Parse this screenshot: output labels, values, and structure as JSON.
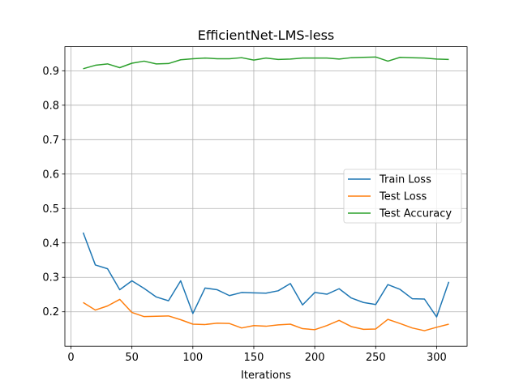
{
  "chart_data": {
    "type": "line",
    "title": "EfficientNet-LMS-less",
    "xlabel": "Iterations",
    "ylabel": "",
    "xlim": [
      -5,
      325
    ],
    "ylim": [
      0.1,
      0.97
    ],
    "xticks": [
      0,
      50,
      100,
      150,
      200,
      250,
      300
    ],
    "yticks": [
      0.2,
      0.3,
      0.4,
      0.5,
      0.6,
      0.7,
      0.8,
      0.9
    ],
    "grid": true,
    "legend_position": "center-right",
    "x": [
      10,
      20,
      30,
      40,
      50,
      60,
      70,
      80,
      90,
      100,
      110,
      120,
      130,
      140,
      150,
      160,
      170,
      180,
      190,
      200,
      210,
      220,
      230,
      240,
      250,
      260,
      270,
      280,
      290,
      300,
      310
    ],
    "series": [
      {
        "name": "Train Loss",
        "color": "#1f77b4",
        "values": [
          0.43,
          0.336,
          0.325,
          0.264,
          0.29,
          0.268,
          0.243,
          0.232,
          0.29,
          0.195,
          0.269,
          0.264,
          0.247,
          0.256,
          0.255,
          0.254,
          0.261,
          0.282,
          0.22,
          0.256,
          0.251,
          0.267,
          0.24,
          0.227,
          0.221,
          0.279,
          0.265,
          0.238,
          0.237,
          0.185,
          0.287
        ]
      },
      {
        "name": "Test Loss",
        "color": "#ff7f0e",
        "values": [
          0.227,
          0.205,
          0.217,
          0.236,
          0.198,
          0.186,
          0.187,
          0.188,
          0.177,
          0.164,
          0.163,
          0.167,
          0.166,
          0.153,
          0.16,
          0.158,
          0.162,
          0.164,
          0.151,
          0.148,
          0.16,
          0.175,
          0.157,
          0.149,
          0.15,
          0.178,
          0.166,
          0.153,
          0.145,
          0.155,
          0.164
        ]
      },
      {
        "name": "Test Accuracy",
        "color": "#2ca02c",
        "values": [
          0.906,
          0.916,
          0.92,
          0.909,
          0.922,
          0.928,
          0.92,
          0.921,
          0.932,
          0.935,
          0.937,
          0.935,
          0.935,
          0.938,
          0.931,
          0.937,
          0.933,
          0.934,
          0.937,
          0.937,
          0.937,
          0.934,
          0.938,
          0.939,
          0.94,
          0.928,
          0.939,
          0.938,
          0.937,
          0.934,
          0.933
        ]
      }
    ]
  }
}
